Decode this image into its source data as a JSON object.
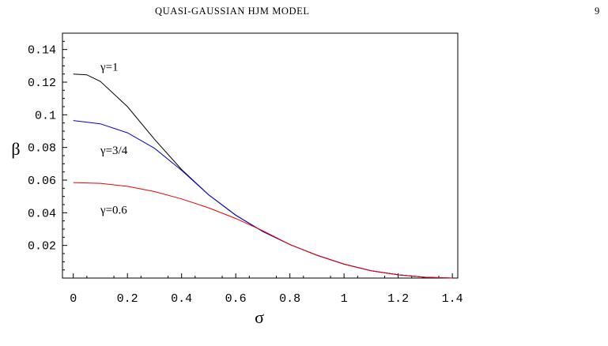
{
  "header": {
    "title": "QUASI-GAUSSIAN HJM MODEL",
    "page_number": "9"
  },
  "caption_fragment": "",
  "chart_data": {
    "type": "line",
    "title": "",
    "xlabel": "σ",
    "ylabel": "β",
    "xlim": [
      -0.04,
      1.42
    ],
    "ylim": [
      0.0,
      0.15
    ],
    "x_ticks": [
      0,
      0.2,
      0.4,
      0.6,
      0.8,
      1.0,
      1.2,
      1.4
    ],
    "x_tick_labels": [
      "0",
      "0.2",
      "0.4",
      "0.6",
      "0.8",
      "1",
      "1.2",
      "1.4"
    ],
    "y_ticks": [
      0.02,
      0.04,
      0.06,
      0.08,
      0.1,
      0.12,
      0.14
    ],
    "y_tick_labels": [
      "0.02",
      "0.04",
      "0.06",
      "0.08",
      "0.1",
      "0.12",
      "0.14"
    ],
    "grid": false,
    "legend": "none",
    "series": [
      {
        "name": "γ=1",
        "color": "#000000",
        "x": [
          0,
          0.05,
          0.1,
          0.2,
          0.3,
          0.4,
          0.5,
          0.6,
          0.7,
          0.8,
          0.9,
          1.0,
          1.1,
          1.2,
          1.3,
          1.4
        ],
        "y": [
          0.125,
          0.1245,
          0.1205,
          0.105,
          0.085,
          0.0665,
          0.051,
          0.0385,
          0.0285,
          0.0205,
          0.014,
          0.0085,
          0.0045,
          0.002,
          0.0005,
          0.0
        ]
      },
      {
        "name": "γ=3/4",
        "color": "#0000cc",
        "x": [
          0,
          0.1,
          0.2,
          0.3,
          0.4,
          0.5,
          0.6,
          0.7,
          0.8,
          0.9,
          1.0,
          1.1,
          1.2,
          1.3,
          1.4
        ],
        "y": [
          0.0965,
          0.0945,
          0.089,
          0.0795,
          0.066,
          0.051,
          0.0385,
          0.0285,
          0.0205,
          0.014,
          0.0085,
          0.0045,
          0.002,
          0.0005,
          0.0
        ]
      },
      {
        "name": "γ=0.6",
        "color": "#ee0000",
        "x": [
          0,
          0.1,
          0.2,
          0.3,
          0.4,
          0.5,
          0.6,
          0.7,
          0.8,
          0.9,
          1.0,
          1.1,
          1.2,
          1.3,
          1.4
        ],
        "y": [
          0.0585,
          0.058,
          0.0562,
          0.053,
          0.0485,
          0.043,
          0.0365,
          0.029,
          0.0205,
          0.014,
          0.0085,
          0.0045,
          0.002,
          0.0005,
          0.0
        ]
      }
    ],
    "annotations": [
      {
        "text": "γ=1",
        "x": 0.1,
        "y": 0.127
      },
      {
        "text": "γ=3/4",
        "x": 0.1,
        "y": 0.076
      },
      {
        "text": "γ=0.6",
        "x": 0.1,
        "y": 0.0395
      }
    ]
  }
}
